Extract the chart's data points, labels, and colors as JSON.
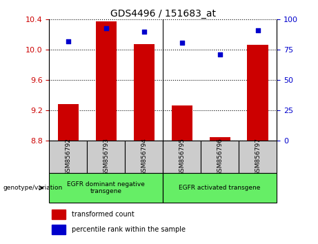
{
  "title": "GDS4496 / 151683_at",
  "samples": [
    "GSM856792",
    "GSM856793",
    "GSM856794",
    "GSM856795",
    "GSM856796",
    "GSM856797"
  ],
  "transformed_count": [
    9.28,
    10.38,
    10.07,
    9.265,
    8.84,
    10.065
  ],
  "percentile_rank": [
    82,
    93,
    90,
    81,
    71,
    91
  ],
  "ylim_left": [
    8.8,
    10.4
  ],
  "ylim_right": [
    0,
    100
  ],
  "yticks_left": [
    8.8,
    9.2,
    9.6,
    10.0,
    10.4
  ],
  "yticks_right": [
    0,
    25,
    50,
    75,
    100
  ],
  "bar_color": "#cc0000",
  "dot_color": "#0000cc",
  "bar_bottom": 8.8,
  "group_labels": [
    "EGFR dominant negative\ntransgene",
    "EGFR activated transgene"
  ],
  "group_ranges": [
    [
      0,
      3
    ],
    [
      3,
      6
    ]
  ],
  "group_bg_color": "#66ee66",
  "sample_bg_color": "#cccccc",
  "genotype_label": "genotype/variation",
  "legend_items": [
    {
      "color": "#cc0000",
      "label": "transformed count"
    },
    {
      "color": "#0000cc",
      "label": "percentile rank within the sample"
    }
  ]
}
